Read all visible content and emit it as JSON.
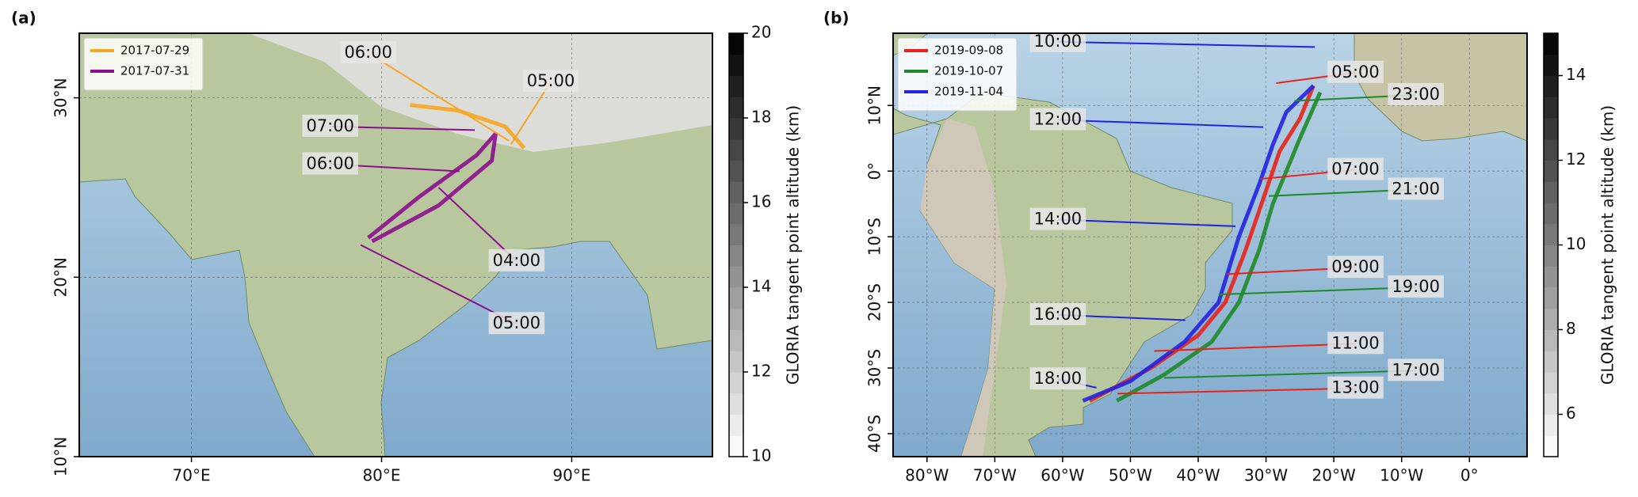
{
  "chart_data": [
    {
      "type": "map",
      "panel_label": "(a)",
      "xlim": [
        64.1,
        97.4
      ],
      "ylim": [
        10,
        33.6
      ],
      "xticks": [
        {
          "value": 70,
          "label": "70°E"
        },
        {
          "value": 80,
          "label": "80°E"
        },
        {
          "value": 90,
          "label": "90°E"
        }
      ],
      "yticks": [
        {
          "value": 10,
          "label": "10°N"
        },
        {
          "value": 20,
          "label": "20°N"
        },
        {
          "value": 30,
          "label": "30°N"
        }
      ],
      "grid": true,
      "legend": "upper left",
      "series": [
        {
          "name": "2017-07-29",
          "color": "#f5a623",
          "x": [
            81.5,
            84,
            86.5,
            87.5
          ],
          "values": [
            29.6,
            29.3,
            28.4,
            27.2
          ]
        },
        {
          "name": "2017-07-31",
          "color": "#8b0f8c",
          "x": [
            79.3,
            82,
            85,
            86,
            85.8,
            83,
            79.5
          ],
          "values": [
            22.2,
            24.5,
            26.8,
            28,
            26.5,
            24,
            22.0
          ]
        }
      ],
      "annotations": [
        {
          "text": "06:00",
          "color": "#f5a623",
          "x": 79.3,
          "y": 32.5,
          "target_x": 86.7,
          "target_y": 27.6
        },
        {
          "text": "05:00",
          "color": "#f5a623",
          "x": 88.9,
          "y": 30.9,
          "target_x": 86.8,
          "target_y": 27.4
        },
        {
          "text": "07:00",
          "color": "#8b0f8c",
          "x": 77.3,
          "y": 28.4,
          "target_x": 84.9,
          "target_y": 28.2
        },
        {
          "text": "06:00",
          "color": "#8b0f8c",
          "x": 77.3,
          "y": 26.3,
          "target_x": 84.1,
          "target_y": 25.9
        },
        {
          "text": "04:00",
          "color": "#8b0f8c",
          "x": 87.1,
          "y": 20.9,
          "target_x": 83.0,
          "target_y": 25.0
        },
        {
          "text": "05:00",
          "color": "#8b0f8c",
          "x": 87.1,
          "y": 17.4,
          "target_x": 78.9,
          "target_y": 21.8
        }
      ],
      "colorbar": {
        "label": "GLORIA tangent point altitude (km)",
        "lim": [
          10,
          20
        ],
        "ticks": [
          10,
          12,
          14,
          16,
          18,
          20
        ]
      }
    },
    {
      "type": "map",
      "panel_label": "(b)",
      "xlim": [
        -85,
        8.5
      ],
      "ylim": [
        -43.5,
        21
      ],
      "xticks": [
        {
          "value": -80,
          "label": "80°W"
        },
        {
          "value": -70,
          "label": "70°W"
        },
        {
          "value": -60,
          "label": "60°W"
        },
        {
          "value": -50,
          "label": "50°W"
        },
        {
          "value": -40,
          "label": "40°W"
        },
        {
          "value": -30,
          "label": "30°W"
        },
        {
          "value": -20,
          "label": "20°W"
        },
        {
          "value": -10,
          "label": "10°W"
        },
        {
          "value": 0,
          "label": "0°"
        }
      ],
      "yticks": [
        {
          "value": 10,
          "label": "10°N"
        },
        {
          "value": 0,
          "label": "0°"
        },
        {
          "value": -10,
          "label": "10°S"
        },
        {
          "value": -20,
          "label": "20°S"
        },
        {
          "value": -30,
          "label": "30°S"
        },
        {
          "value": -40,
          "label": "40°S"
        }
      ],
      "grid": true,
      "legend": "upper left",
      "series": [
        {
          "name": "2019-09-08",
          "color": "#e8231c",
          "x": [
            -23,
            -25,
            -28,
            -30,
            -33,
            -36,
            -40,
            -47,
            -56
          ],
          "values": [
            13,
            8,
            3,
            -3,
            -12,
            -20,
            -25,
            -30,
            -35
          ]
        },
        {
          "name": "2019-10-07",
          "color": "#1f8a2a",
          "x": [
            -22,
            -25,
            -27,
            -29,
            -31,
            -34,
            -38,
            -45,
            -52
          ],
          "values": [
            12,
            5,
            0,
            -5,
            -12,
            -20,
            -26,
            -31,
            -35
          ]
        },
        {
          "name": "2019-11-04",
          "color": "#2323e0",
          "x": [
            -23,
            -27,
            -29,
            -31,
            -34,
            -37,
            -42,
            -50,
            -57
          ],
          "values": [
            13,
            9,
            4,
            -2,
            -10,
            -20,
            -26,
            -32,
            -35
          ]
        }
      ],
      "annotations": [
        {
          "text": "10:00",
          "color": "#2323e0",
          "x": -60.7,
          "y": 19.7,
          "target_x": -22.8,
          "target_y": 18.9
        },
        {
          "text": "05:00",
          "color": "#e8231c",
          "x": -16.8,
          "y": 15,
          "target_x": -28.5,
          "target_y": 13.4
        },
        {
          "text": "23:00",
          "color": "#1f8a2a",
          "x": -7.9,
          "y": 11.6,
          "target_x": -25.8,
          "target_y": 10.7
        },
        {
          "text": "12:00",
          "color": "#2323e0",
          "x": -60.7,
          "y": 7.8,
          "target_x": -30.4,
          "target_y": 6.7
        },
        {
          "text": "07:00",
          "color": "#e8231c",
          "x": -16.8,
          "y": 0.2,
          "target_x": -30.8,
          "target_y": -1.2
        },
        {
          "text": "21:00",
          "color": "#1f8a2a",
          "x": -7.9,
          "y": -2.8,
          "target_x": -29.6,
          "target_y": -3.8
        },
        {
          "text": "14:00",
          "color": "#2323e0",
          "x": -60.7,
          "y": -7.4,
          "target_x": -34.5,
          "target_y": -8.4
        },
        {
          "text": "09:00",
          "color": "#e8231c",
          "x": -16.8,
          "y": -14.7,
          "target_x": -35.8,
          "target_y": -15.7
        },
        {
          "text": "19:00",
          "color": "#1f8a2a",
          "x": -7.9,
          "y": -17.7,
          "target_x": -37,
          "target_y": -18.8
        },
        {
          "text": "16:00",
          "color": "#2323e0",
          "x": -60.7,
          "y": -21.9,
          "target_x": -41.9,
          "target_y": -22.7
        },
        {
          "text": "11:00",
          "color": "#e8231c",
          "x": -16.8,
          "y": -26.3,
          "target_x": -46.5,
          "target_y": -27.4
        },
        {
          "text": "17:00",
          "color": "#1f8a2a",
          "x": -7.9,
          "y": -30.4,
          "target_x": -45,
          "target_y": -31.5
        },
        {
          "text": "18:00",
          "color": "#2323e0",
          "x": -60.7,
          "y": -31.7,
          "target_x": -55,
          "target_y": -33
        },
        {
          "text": "13:00",
          "color": "#e8231c",
          "x": -16.8,
          "y": -33.1,
          "target_x": -51.9,
          "target_y": -33.9
        }
      ],
      "colorbar": {
        "label": "GLORIA tangent point altitude (km)",
        "lim": [
          5,
          15
        ],
        "ticks": [
          6,
          8,
          10,
          12,
          14
        ]
      }
    }
  ]
}
